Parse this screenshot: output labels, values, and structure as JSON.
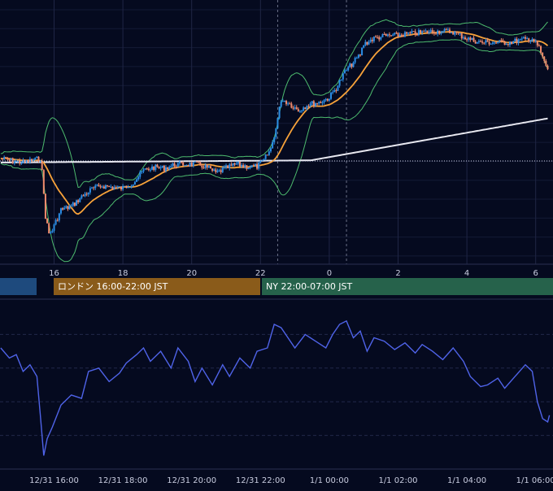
{
  "chart_data": [
    {
      "type": "candlestick",
      "name": "",
      "x_tick_labels": [
        "16",
        "18",
        "20",
        "22",
        "0",
        "2",
        "4",
        "6"
      ],
      "x_tick_hours": [
        16,
        18,
        20,
        22,
        24,
        26,
        28,
        30
      ],
      "x_range_hours": [
        14.45,
        30.4
      ],
      "y_range": [
        0,
        330
      ],
      "reference_line": 201,
      "session_dashed_hours": [
        22.5,
        24.5
      ],
      "overlays": {
        "moving_average_short": {
          "color": "#f7a23a"
        },
        "moving_average_long": {
          "color": "#e8e8f0"
        },
        "bollinger_bands": {
          "color": "#4dbb6e"
        }
      },
      "price_path": [
        [
          14.45,
          198
        ],
        [
          14.8,
          201
        ],
        [
          15.1,
          203
        ],
        [
          15.4,
          200
        ],
        [
          15.6,
          198
        ],
        [
          15.65,
          215
        ],
        [
          15.75,
          270
        ],
        [
          15.85,
          292
        ],
        [
          15.95,
          287
        ],
        [
          16.2,
          262
        ],
        [
          16.5,
          258
        ],
        [
          16.8,
          246
        ],
        [
          17.1,
          236
        ],
        [
          17.4,
          232
        ],
        [
          17.7,
          234
        ],
        [
          18.0,
          235
        ],
        [
          18.3,
          228
        ],
        [
          18.6,
          213
        ],
        [
          18.9,
          209
        ],
        [
          19.2,
          210
        ],
        [
          19.5,
          206
        ],
        [
          19.8,
          205
        ],
        [
          20.1,
          205
        ],
        [
          20.4,
          208
        ],
        [
          20.7,
          216
        ],
        [
          21.0,
          210
        ],
        [
          21.3,
          205
        ],
        [
          21.6,
          208
        ],
        [
          21.9,
          208
        ],
        [
          22.1,
          200
        ],
        [
          22.3,
          186
        ],
        [
          22.45,
          160
        ],
        [
          22.6,
          124
        ],
        [
          22.8,
          128
        ],
        [
          23.1,
          138
        ],
        [
          23.4,
          130
        ],
        [
          23.7,
          128
        ],
        [
          24.0,
          122
        ],
        [
          24.2,
          110
        ],
        [
          24.45,
          90
        ],
        [
          24.7,
          78
        ],
        [
          24.9,
          68
        ],
        [
          25.0,
          55
        ],
        [
          25.3,
          48
        ],
        [
          25.6,
          45
        ],
        [
          26.0,
          44
        ],
        [
          26.4,
          42
        ],
        [
          26.8,
          40
        ],
        [
          27.2,
          39
        ],
        [
          27.6,
          40
        ],
        [
          28.0,
          48
        ],
        [
          28.4,
          53
        ],
        [
          28.8,
          53
        ],
        [
          29.2,
          53
        ],
        [
          29.6,
          50
        ],
        [
          29.9,
          48
        ],
        [
          30.1,
          60
        ],
        [
          30.25,
          78
        ],
        [
          30.4,
          90
        ]
      ],
      "sessions": [
        {
          "label": "",
          "color": "#1e4a7d"
        },
        {
          "label": "ロンドン 16:00-22:00 JST",
          "color": "#8a5b1a"
        },
        {
          "label": "NY 22:00-07:00 JST",
          "color": "#26624b"
        }
      ]
    },
    {
      "type": "line",
      "name": "",
      "color": "#4f63e8",
      "x_tick_labels": [
        "12/31 16:00",
        "12/31 18:00",
        "12/31 20:00",
        "12/31 22:00",
        "1/1 00:00",
        "1/1 02:00",
        "1/1 04:00",
        "1/1 06:00"
      ],
      "x_tick_hours": [
        16,
        18,
        20,
        22,
        24,
        26,
        28,
        30
      ],
      "y_range": [
        0,
        100
      ],
      "grid_levels": [
        20,
        40,
        60,
        80
      ],
      "points": [
        [
          14.45,
          72
        ],
        [
          14.7,
          66
        ],
        [
          14.9,
          68
        ],
        [
          15.1,
          58
        ],
        [
          15.3,
          62
        ],
        [
          15.5,
          55
        ],
        [
          15.6,
          32
        ],
        [
          15.7,
          8
        ],
        [
          15.8,
          18
        ],
        [
          15.95,
          25
        ],
        [
          16.2,
          38
        ],
        [
          16.5,
          44
        ],
        [
          16.8,
          42
        ],
        [
          17.0,
          58
        ],
        [
          17.3,
          60
        ],
        [
          17.6,
          52
        ],
        [
          17.9,
          57
        ],
        [
          18.1,
          63
        ],
        [
          18.4,
          68
        ],
        [
          18.6,
          72
        ],
        [
          18.8,
          64
        ],
        [
          19.1,
          70
        ],
        [
          19.4,
          60
        ],
        [
          19.6,
          72
        ],
        [
          19.9,
          64
        ],
        [
          20.1,
          52
        ],
        [
          20.3,
          60
        ],
        [
          20.6,
          50
        ],
        [
          20.9,
          62
        ],
        [
          21.1,
          55
        ],
        [
          21.4,
          66
        ],
        [
          21.7,
          60
        ],
        [
          21.9,
          70
        ],
        [
          22.2,
          72
        ],
        [
          22.4,
          86
        ],
        [
          22.6,
          84
        ],
        [
          22.8,
          78
        ],
        [
          23.0,
          72
        ],
        [
          23.3,
          80
        ],
        [
          23.6,
          76
        ],
        [
          23.9,
          72
        ],
        [
          24.1,
          80
        ],
        [
          24.3,
          86
        ],
        [
          24.5,
          88
        ],
        [
          24.7,
          78
        ],
        [
          24.9,
          82
        ],
        [
          25.1,
          70
        ],
        [
          25.3,
          78
        ],
        [
          25.6,
          76
        ],
        [
          25.9,
          71
        ],
        [
          26.2,
          75
        ],
        [
          26.5,
          69
        ],
        [
          26.7,
          74
        ],
        [
          27.0,
          70
        ],
        [
          27.3,
          65
        ],
        [
          27.6,
          72
        ],
        [
          27.9,
          64
        ],
        [
          28.1,
          55
        ],
        [
          28.4,
          49
        ],
        [
          28.6,
          50
        ],
        [
          28.9,
          54
        ],
        [
          29.1,
          48
        ],
        [
          29.4,
          55
        ],
        [
          29.7,
          62
        ],
        [
          29.9,
          58
        ],
        [
          30.05,
          40
        ],
        [
          30.2,
          30
        ],
        [
          30.35,
          28
        ],
        [
          30.4,
          32
        ]
      ]
    }
  ]
}
